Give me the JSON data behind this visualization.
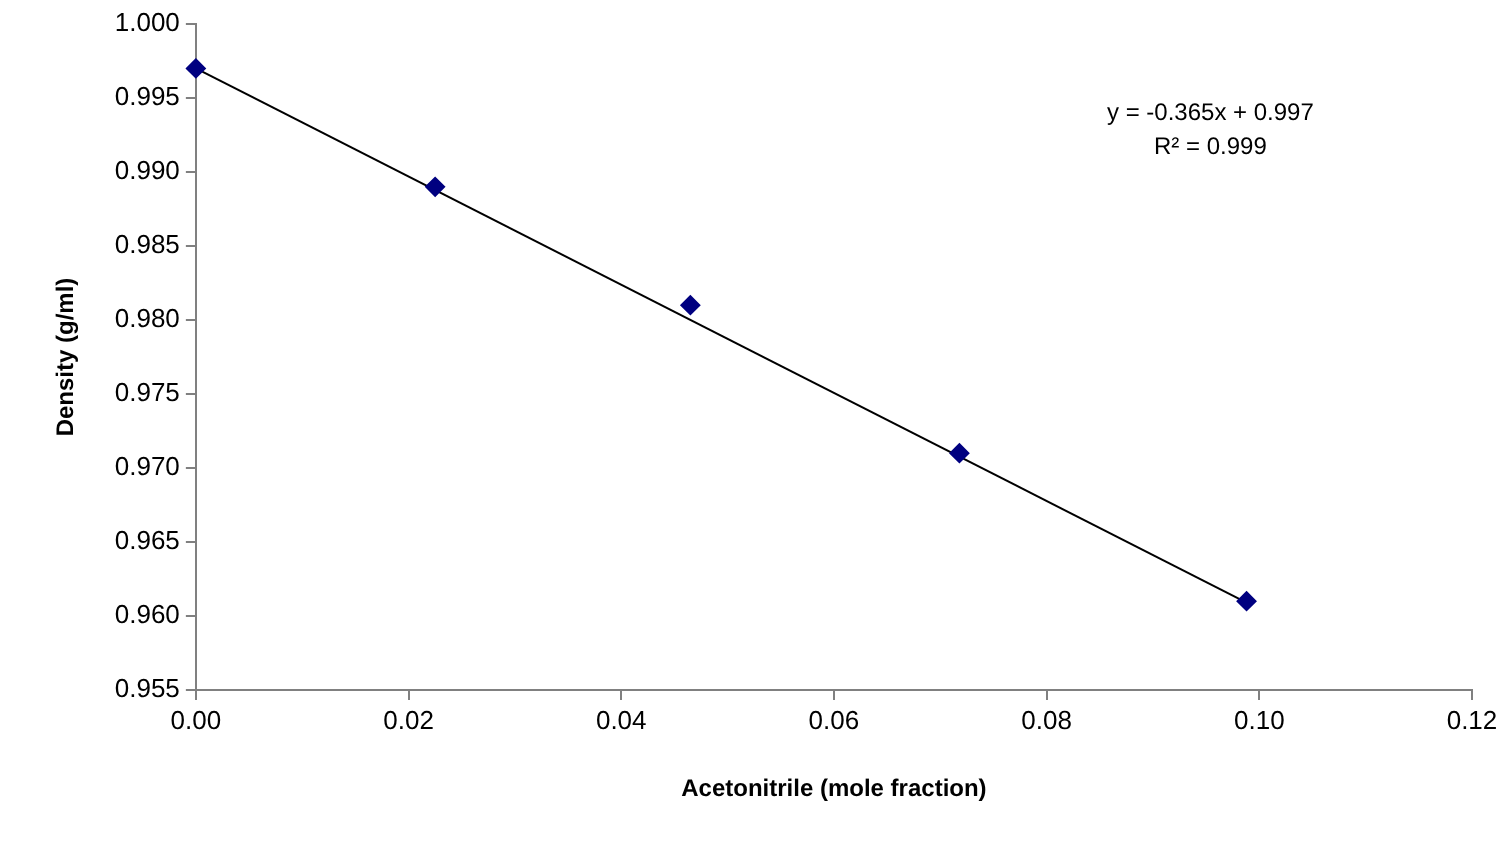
{
  "chart_data": {
    "type": "scatter",
    "xlabel": "Acetonitrile (mole fraction)",
    "ylabel": "Density (g/ml)",
    "x": [
      0,
      0.0225,
      0.0465,
      0.0718,
      0.0988
    ],
    "series": [
      {
        "color": "#000080",
        "values": [
          0.997,
          0.989,
          0.981,
          0.971,
          0.961
        ]
      },
      {
        "type": "line",
        "color": "#000000",
        "x": [
          0,
          0.0988
        ],
        "values": [
          0.997,
          0.9609
        ],
        "marker": "none"
      }
    ],
    "xlim": [
      0,
      0.12
    ],
    "xticks": [
      {
        "value": 0,
        "label": "0.00"
      },
      {
        "value": 0.02,
        "label": "0.02"
      },
      {
        "value": 0.04,
        "label": "0.04"
      },
      {
        "value": 0.06,
        "label": "0.06"
      },
      {
        "value": 0.08,
        "label": "0.08"
      },
      {
        "value": 0.1,
        "label": "0.10"
      },
      {
        "value": 0.12,
        "label": "0.12"
      }
    ],
    "ylim": [
      0.955,
      1
    ],
    "yticks": [
      {
        "value": 0.955,
        "label": "0.955"
      },
      {
        "value": 0.96,
        "label": "0.960"
      },
      {
        "value": 0.965,
        "label": "0.965"
      },
      {
        "value": 0.97,
        "label": "0.970"
      },
      {
        "value": 0.975,
        "label": "0.975"
      },
      {
        "value": 0.98,
        "label": "0.980"
      },
      {
        "value": 0.985,
        "label": "0.985"
      },
      {
        "value": 0.99,
        "label": "0.990"
      },
      {
        "value": 0.995,
        "label": "0.995"
      },
      {
        "value": 1,
        "label": "1.000"
      }
    ],
    "annotations": [
      "y = -0.365x + 0.997",
      "R² = 0.999"
    ],
    "marker": "diamond",
    "grid": false,
    "legend": false
  }
}
